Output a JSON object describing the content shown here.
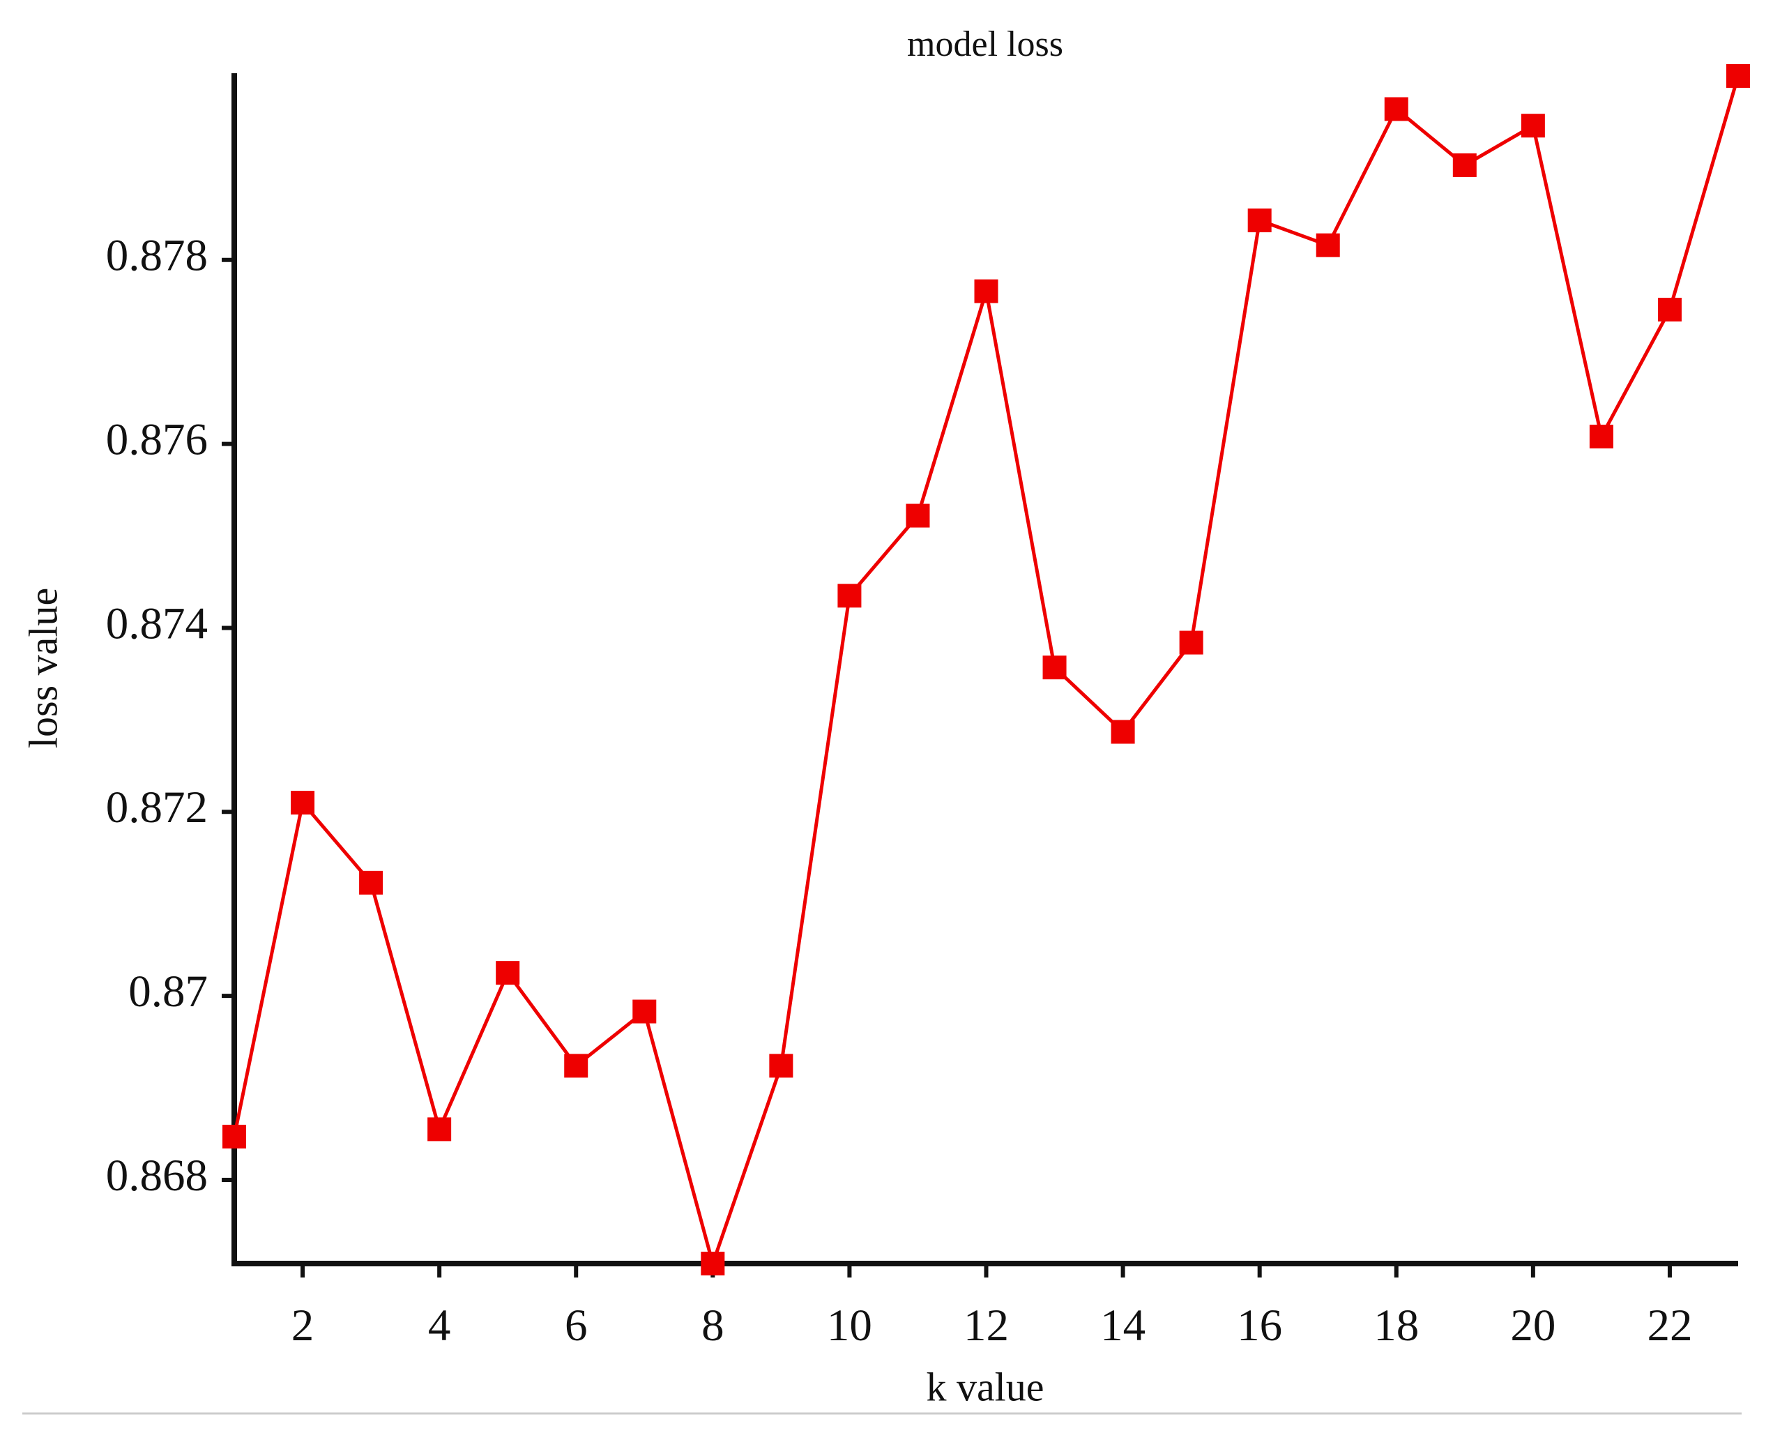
{
  "chart_data": {
    "type": "line",
    "title": "model loss",
    "x_label": "k value",
    "y_label": "loss value",
    "x": [
      1,
      2,
      3,
      4,
      5,
      6,
      7,
      8,
      9,
      10,
      11,
      12,
      13,
      14,
      15,
      16,
      17,
      18,
      19,
      20,
      21,
      22,
      23
    ],
    "series": [
      {
        "name": "loss",
        "color": "#ee0000",
        "values": [
          0.86847,
          0.8721,
          0.87123,
          0.86855,
          0.87025,
          0.86924,
          0.86983,
          0.86709,
          0.86924,
          0.87435,
          0.87522,
          0.87766,
          0.87357,
          0.87287,
          0.87384,
          0.87843,
          0.87816,
          0.87964,
          0.87903,
          0.87946,
          0.87608,
          0.87746,
          0.88
        ]
      }
    ],
    "xlim": [
      1,
      23
    ],
    "xticks": [
      2,
      4,
      6,
      8,
      10,
      12,
      14,
      16,
      18,
      20,
      22
    ],
    "ylim": [
      0.86709,
      0.88003
    ],
    "yticks": [
      0.868,
      0.87,
      0.872,
      0.874,
      0.876,
      0.878
    ],
    "grid": false
  }
}
